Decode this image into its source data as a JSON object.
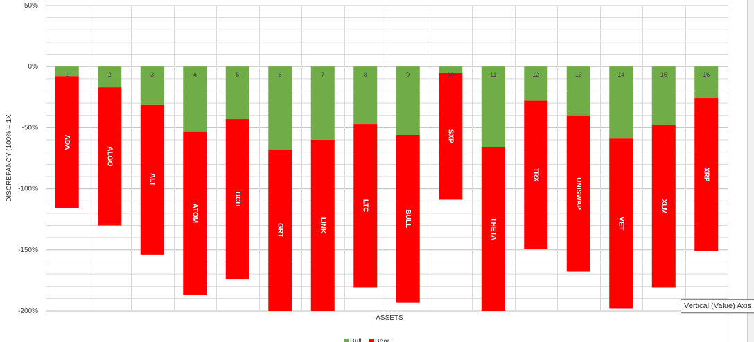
{
  "chart_data": {
    "type": "bar",
    "stacked": true,
    "ylabel": "DISCREPANCY (100% = 1X",
    "xlabel": "ASSETS",
    "ylim": [
      -200,
      50
    ],
    "y_ticks": [
      {
        "value": 50,
        "label": "50%"
      },
      {
        "value": 0,
        "label": "0%"
      },
      {
        "value": -50,
        "label": "-50%"
      },
      {
        "value": -100,
        "label": "-100%"
      },
      {
        "value": -150,
        "label": "-150%"
      },
      {
        "value": -200,
        "label": "-200%"
      }
    ],
    "grid": true,
    "legend_position": "bottom",
    "categories": [
      "1",
      "2",
      "3",
      "4",
      "5",
      "6",
      "7",
      "8",
      "9",
      "10",
      "11",
      "12",
      "13",
      "14",
      "15",
      "16"
    ],
    "asset_names": [
      "ADA",
      "ALGO",
      "ALT",
      "ATOM",
      "BCH",
      "GRT",
      "LINK",
      "LTC",
      "BULL",
      "SXP",
      "THETA",
      "TRX",
      "UNISWAP",
      "VET",
      "XLM",
      "XRP"
    ],
    "series": [
      {
        "name": "Bull",
        "color": "#70ad47",
        "values": [
          -8,
          -17,
          -31,
          -53,
          -43,
          -68,
          -60,
          -47,
          -56,
          -5,
          -66,
          -28,
          -40,
          -59,
          -48,
          -26
        ]
      },
      {
        "name": "Bear",
        "color": "#ff0000",
        "values": [
          -108,
          -113,
          -123,
          -134,
          -131,
          -132,
          -140,
          -134,
          -137,
          -104,
          -134,
          -121,
          -128,
          -139,
          -133,
          -125
        ]
      }
    ]
  },
  "tooltip_text": "Vertical (Value) Axis"
}
